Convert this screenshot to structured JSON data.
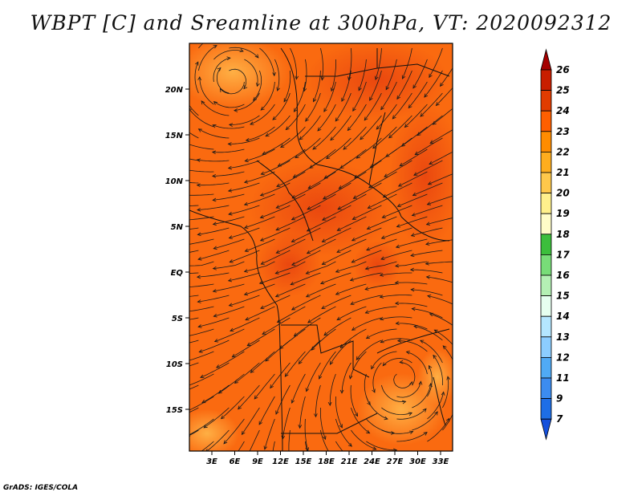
{
  "title": "WBPT [C] and Sreamline at 300hPa, VT: 2020092312",
  "credit": "GrADS: IGES/COLA",
  "map": {
    "lat_labels": [
      "20N",
      "15N",
      "10N",
      "5N",
      "EQ",
      "5S",
      "10S",
      "15S"
    ],
    "lon_labels": [
      "3E",
      "6E",
      "9E",
      "12E",
      "15E",
      "18E",
      "21E",
      "24E",
      "27E",
      "30E",
      "33E"
    ]
  },
  "colorbar": {
    "levels": [
      "26",
      "25",
      "24",
      "23",
      "22",
      "21",
      "20",
      "19",
      "18",
      "17",
      "16",
      "15",
      "14",
      "13",
      "12",
      "11",
      "9",
      "7"
    ],
    "colors": [
      "#a50000",
      "#c81e00",
      "#e13c00",
      "#ff5f00",
      "#ff8c00",
      "#ffad1e",
      "#ffc84b",
      "#fff08c",
      "#fffcc8",
      "#3cbe3c",
      "#78dc78",
      "#b4f0b4",
      "#e6fff0",
      "#b4e6ff",
      "#8ccdff",
      "#50aaf5",
      "#3c8cf0",
      "#1e6ee6",
      "#1450dc"
    ]
  }
}
